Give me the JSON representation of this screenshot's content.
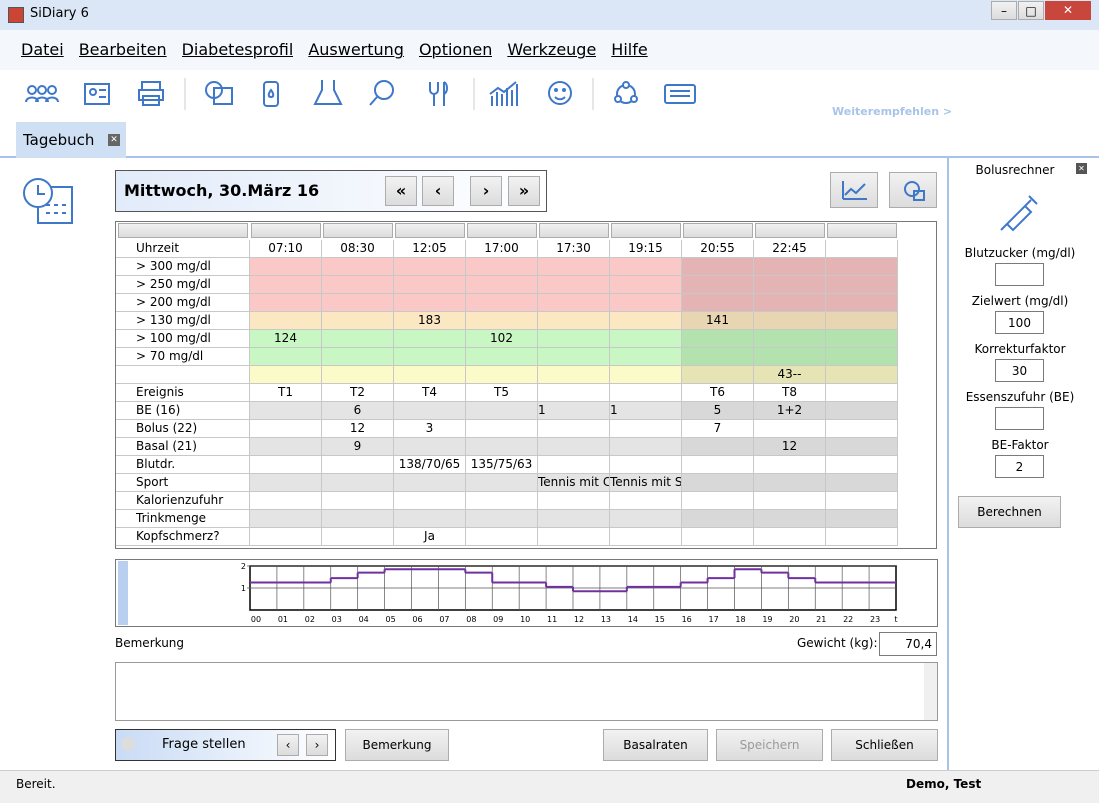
{
  "window": {
    "title": "SiDiary 6"
  },
  "menu": [
    "Datei",
    "Bearbeiten",
    "Diabetesprofil",
    "Auswertung",
    "Optionen",
    "Werkzeuge",
    "Hilfe"
  ],
  "toolbar": {
    "link": "Weiterempfehlen >"
  },
  "tab": {
    "title": "Tagebuch"
  },
  "diary": {
    "date": "Mittwoch, 30.März 16",
    "nav": [
      "«",
      "‹",
      "›",
      "»"
    ],
    "table": {
      "time_label": "Uhrzeit",
      "times": [
        "07:10",
        "08:30",
        "12:05",
        "17:00",
        "17:30",
        "19:15",
        "20:55",
        "22:45",
        null
      ],
      "glucose_rows": [
        {
          "label": "> 300 mg/dl",
          "band": "high",
          "cells": [
            null,
            null,
            null,
            null,
            null,
            null,
            null,
            null,
            null
          ]
        },
        {
          "label": "> 250 mg/dl",
          "band": "high",
          "cells": [
            null,
            null,
            null,
            null,
            null,
            null,
            null,
            null,
            null
          ]
        },
        {
          "label": "> 200 mg/dl",
          "band": "high",
          "cells": [
            null,
            null,
            null,
            null,
            null,
            null,
            null,
            null,
            null
          ]
        },
        {
          "label": "> 130 mg/dl",
          "band": "elevated",
          "cells": [
            null,
            null,
            183,
            null,
            null,
            null,
            141,
            null,
            null
          ]
        },
        {
          "label": "> 100 mg/dl",
          "band": "normal",
          "cells": [
            124,
            null,
            null,
            102,
            null,
            null,
            null,
            null,
            null
          ]
        },
        {
          "label": ">   70 mg/dl",
          "band": "normal",
          "cells": [
            null,
            null,
            null,
            null,
            null,
            null,
            null,
            null,
            null
          ]
        },
        {
          "label": null,
          "band": "low",
          "cells": [
            null,
            null,
            null,
            null,
            null,
            null,
            null,
            "43--",
            null
          ]
        }
      ],
      "entry_rows": [
        {
          "label": "Ereignis",
          "cells": [
            "T1",
            "T2",
            "T4",
            "T5",
            null,
            null,
            "T6",
            "T8",
            null
          ]
        },
        {
          "label": "BE (16)",
          "cells": [
            null,
            6,
            null,
            null,
            1,
            1,
            5,
            "1+2",
            null
          ]
        },
        {
          "label": "Bolus (22)",
          "cells": [
            null,
            12,
            3,
            null,
            null,
            null,
            7,
            null,
            null
          ]
        },
        {
          "label": "Basal (21)",
          "cells": [
            null,
            9,
            null,
            null,
            null,
            null,
            null,
            12,
            null
          ]
        },
        {
          "label": "Blutdr.",
          "cells": [
            null,
            null,
            "138/70/65",
            "135/75/63",
            null,
            null,
            null,
            null,
            null
          ]
        },
        {
          "label": "Sport",
          "cells": [
            null,
            null,
            null,
            null,
            "Tennis mit C",
            "Tennis mit S",
            null,
            null,
            null
          ]
        },
        {
          "label": "Kalorienzufuhr",
          "cells": [
            null,
            null,
            null,
            null,
            null,
            null,
            null,
            null,
            null
          ]
        },
        {
          "label": "Trinkmenge",
          "cells": [
            null,
            null,
            null,
            null,
            null,
            null,
            null,
            null,
            null
          ]
        },
        {
          "label": "Kopfschmerz?",
          "cells": [
            null,
            null,
            "Ja",
            null,
            null,
            null,
            null,
            null,
            null
          ]
        }
      ]
    }
  },
  "chart_data": {
    "type": "step",
    "categories": [
      "00",
      "01",
      "02",
      "03",
      "04",
      "05",
      "06",
      "07",
      "08",
      "09",
      "10",
      "11",
      "12",
      "13",
      "14",
      "15",
      "16",
      "17",
      "18",
      "19",
      "20",
      "21",
      "22",
      "23"
    ],
    "values": [
      1.25,
      1.25,
      1.25,
      1.45,
      1.7,
      1.85,
      1.85,
      1.85,
      1.7,
      1.25,
      1.25,
      1.05,
      0.85,
      0.85,
      1.05,
      1.05,
      1.25,
      1.45,
      1.85,
      1.7,
      1.45,
      1.25,
      1.25,
      1.25
    ],
    "x_unit": "t",
    "ylim": [
      0,
      2
    ],
    "yticks": [
      1,
      2
    ],
    "color": "#7030a0",
    "grid": true
  },
  "bolus": {
    "title": "Bolusrechner",
    "fields": [
      {
        "label": "Blutzucker (mg/dl)",
        "value": null
      },
      {
        "label": "Zielwert (mg/dl)",
        "value": 100
      },
      {
        "label": "Korrekturfaktor",
        "value": 30
      },
      {
        "label": "Essenszufuhr (BE)",
        "value": null
      },
      {
        "label": "BE-Faktor",
        "value": 2
      }
    ],
    "button": "Berechnen"
  },
  "remark": {
    "label": "Bemerkung",
    "weight_label": "Gewicht (kg):",
    "weight": "70,4"
  },
  "buttons": {
    "ask": "Frage stellen",
    "remark": "Bemerkung",
    "basal": "Basalraten",
    "save": "Speichern",
    "close": "Schließen"
  },
  "status": {
    "text": "Bereit.",
    "user": "Demo, Test"
  }
}
